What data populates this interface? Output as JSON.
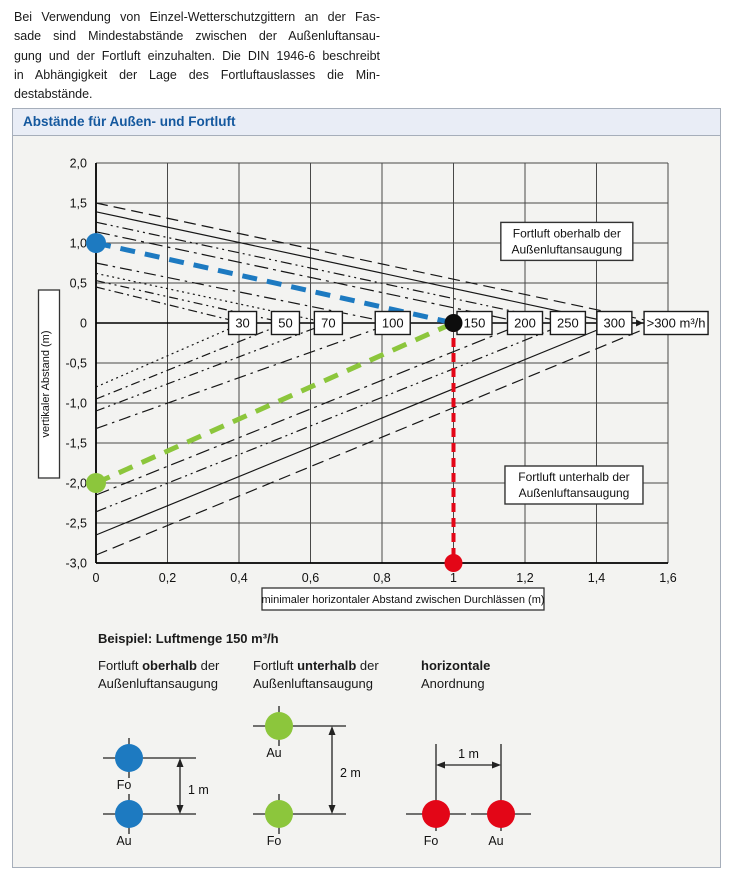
{
  "intro": {
    "lines": [
      "Bei Verwendung von Einzel-Wetterschutzgittern an der Fas-",
      "sade sind Mindestabstände zwischen der Außenluftansau-",
      "gung und der Fortluft einzuhalten. Die DIN 1946-6 beschreibt",
      "in Abhängigkeit der Lage des Fortluftauslasses die Min-",
      "destabstände."
    ]
  },
  "panel": {
    "title": "Abstände für Außen- und Fortluft"
  },
  "chart_data": {
    "type": "line",
    "title": "Abstände für Außen- und Fortluft",
    "xlabel": "minimaler horizontaler Abstand zwischen Durchlässen (m)",
    "ylabel": "vertikaler Abstand (m)",
    "xlim": [
      0,
      1.6
    ],
    "ylim": [
      -3,
      2
    ],
    "grid": true,
    "x_ticks": [
      "0",
      "0,2",
      "0,4",
      "0,6",
      "0,8",
      "1",
      "1,2",
      "1,4",
      "1,6"
    ],
    "y_ticks": [
      "2,0",
      "1,5",
      "1,0",
      "0,5",
      "0",
      "-0,5",
      "-1,0",
      "-1,5",
      "-2,0",
      "-2,5",
      "-3,0"
    ],
    "volume_lines": [
      {
        "label": "30",
        "x_cross": 0.41,
        "y_above": 0.45,
        "y_below": -0.8,
        "dash_above": "9,4,2,4",
        "dash_below": "2,3.5"
      },
      {
        "label": "50",
        "x_cross": 0.53,
        "y_above": 0.53,
        "y_below": -0.95,
        "dash_above": "9,4,2,4,2,4",
        "dash_below": "9,4,2,4"
      },
      {
        "label": "70",
        "x_cross": 0.65,
        "y_above": 0.62,
        "y_below": -1.1,
        "dash_above": "2,3.5",
        "dash_below": "9,4,2,4,2,4"
      },
      {
        "label": "100",
        "x_cross": 0.83,
        "y_above": 0.75,
        "y_below": -1.32,
        "dash_above": "12,5,2.5,5",
        "dash_below": "12,5,2.5,5"
      },
      {
        "label": "150",
        "x_cross": 1.0,
        "y_above": 1.0,
        "y_below": -2.0,
        "hidden": true
      },
      {
        "label": "200",
        "x_cross": 1.2,
        "y_above": 1.14,
        "y_below": -2.15,
        "dash_above": "14,5,3,5",
        "dash_below": "14,5,3,5"
      },
      {
        "label": "250",
        "x_cross": 1.32,
        "y_above": 1.26,
        "y_below": -2.36,
        "dash_above": "11,4,2,4,2,4",
        "dash_below": "11,4,2,4,2,4"
      },
      {
        "label": "300",
        "x_cross": 1.45,
        "y_above": 1.39,
        "y_below": -2.65,
        "dash_above": "",
        "dash_below": ""
      },
      {
        "label": ">300 m³/h",
        "x_cross": 1.575,
        "y_above": 1.5,
        "y_below": -2.9,
        "dash_above": "12,6",
        "dash_below": "12,6"
      }
    ],
    "example": {
      "above": {
        "from": [
          0,
          1.0
        ],
        "to": [
          1,
          0
        ],
        "color": "#1d7ac1"
      },
      "below": {
        "from": [
          0,
          -2.0
        ],
        "to": [
          1,
          0
        ],
        "color": "#8cc63c"
      },
      "horizontal": {
        "from": [
          1,
          0
        ],
        "to": [
          1,
          -3.0
        ],
        "color": "#e30617"
      },
      "points": [
        {
          "xy": [
            0,
            1.0
          ],
          "color": "#1d7ac1",
          "r": 10
        },
        {
          "xy": [
            0,
            -2.0
          ],
          "color": "#8cc63c",
          "r": 10
        },
        {
          "xy": [
            1,
            0
          ],
          "color": "#0d0d0d",
          "r": 9
        },
        {
          "xy": [
            1,
            -3.0
          ],
          "color": "#e30617",
          "r": 9
        }
      ]
    },
    "annotations": [
      {
        "lines": [
          "Fortluft oberhalb der",
          "Außenluftansaugung"
        ],
        "center": [
          1.317,
          1.02
        ]
      },
      {
        "lines": [
          "Fortluft unterhalb der",
          "Außenluftansaugung"
        ],
        "center": [
          1.337,
          -2.025
        ]
      }
    ]
  },
  "legend": {
    "example_title": "Beispiel: Luftmenge 150 m³/h",
    "cols": [
      {
        "pre": "Fortluft ",
        "bold": "oberhalb",
        "post": " der",
        "line2": "Außenluftansaugung"
      },
      {
        "pre": "Fortluft ",
        "bold": "unterhalb",
        "post": " der",
        "line2": "Außenluftansaugung"
      },
      {
        "pre": "",
        "bold": "horizontale",
        "post": "",
        "line2": "Anordnung"
      }
    ],
    "diagrams": [
      {
        "name": "above",
        "color": "#1d7ac1",
        "top_label": "Fo",
        "bottom_label": "Au",
        "dim": "1 m"
      },
      {
        "name": "below",
        "color": "#8cc63c",
        "top_label": "Au",
        "bottom_label": "Fo",
        "dim": "2 m"
      },
      {
        "name": "horizontal",
        "color": "#e30617",
        "left_label": "Fo",
        "right_label": "Au",
        "dim": "1 m"
      }
    ]
  },
  "colors": {
    "panel_bg": "#f3f3f1",
    "header_bg": "#e9edf6",
    "header_text": "#14589e",
    "grid": "#484848",
    "line": "#161616",
    "blue": "#1d7ac1",
    "green": "#8cc63c",
    "red": "#e30617"
  }
}
